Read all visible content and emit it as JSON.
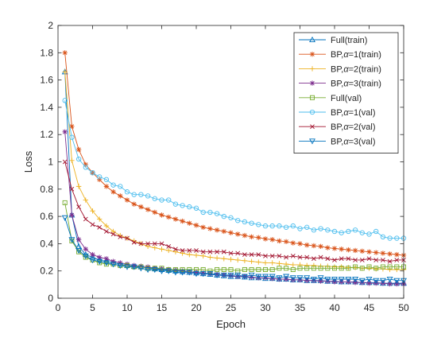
{
  "chart_data": {
    "type": "line",
    "xlabel": "Epoch",
    "ylabel": "Loss",
    "xlim": [
      0,
      50
    ],
    "ylim": [
      0,
      2
    ],
    "xticks": [
      0,
      5,
      10,
      15,
      20,
      25,
      30,
      35,
      40,
      45,
      50
    ],
    "yticks": [
      0,
      0.2,
      0.4,
      0.6,
      0.8,
      1,
      1.2,
      1.4,
      1.6,
      1.8,
      2
    ],
    "grid": false,
    "legend_position": "top-right",
    "x": [
      1,
      2,
      3,
      4,
      5,
      6,
      7,
      8,
      9,
      10,
      11,
      12,
      13,
      14,
      15,
      16,
      17,
      18,
      19,
      20,
      21,
      22,
      23,
      24,
      25,
      26,
      27,
      28,
      29,
      30,
      31,
      32,
      33,
      34,
      35,
      36,
      37,
      38,
      39,
      40,
      41,
      42,
      43,
      44,
      45,
      46,
      47,
      48,
      49,
      50
    ],
    "series": [
      {
        "name": "Full(train)",
        "label_prefix": "Full",
        "label_alpha": "",
        "label_suffix": "(train)",
        "color": "#0072BD",
        "marker": "triangle-up",
        "values": [
          1.66,
          0.61,
          0.38,
          0.32,
          0.3,
          0.28,
          0.27,
          0.26,
          0.25,
          0.24,
          0.235,
          0.23,
          0.22,
          0.215,
          0.21,
          0.205,
          0.2,
          0.195,
          0.19,
          0.185,
          0.18,
          0.175,
          0.17,
          0.165,
          0.16,
          0.16,
          0.155,
          0.15,
          0.15,
          0.145,
          0.145,
          0.14,
          0.14,
          0.135,
          0.135,
          0.13,
          0.13,
          0.13,
          0.125,
          0.125,
          0.12,
          0.12,
          0.12,
          0.115,
          0.115,
          0.115,
          0.11,
          0.11,
          0.11,
          0.11
        ]
      },
      {
        "name": "BP,α=1(train)",
        "label_prefix": "BP,",
        "label_alpha": "α",
        "label_suffix": "=1(train)",
        "color": "#D95319",
        "marker": "star",
        "values": [
          1.8,
          1.26,
          1.09,
          0.98,
          0.92,
          0.87,
          0.82,
          0.78,
          0.75,
          0.72,
          0.69,
          0.67,
          0.65,
          0.63,
          0.61,
          0.595,
          0.58,
          0.565,
          0.55,
          0.535,
          0.52,
          0.51,
          0.5,
          0.49,
          0.48,
          0.47,
          0.46,
          0.45,
          0.445,
          0.435,
          0.43,
          0.42,
          0.415,
          0.405,
          0.4,
          0.39,
          0.385,
          0.38,
          0.37,
          0.365,
          0.36,
          0.355,
          0.35,
          0.345,
          0.34,
          0.335,
          0.33,
          0.325,
          0.32,
          0.315
        ]
      },
      {
        "name": "BP,α=2(train)",
        "label_prefix": "BP,",
        "label_alpha": "α",
        "label_suffix": "=2(train)",
        "color": "#EDB120",
        "marker": "plus",
        "values": [
          1.66,
          1.01,
          0.82,
          0.72,
          0.64,
          0.58,
          0.53,
          0.49,
          0.46,
          0.44,
          0.42,
          0.4,
          0.38,
          0.37,
          0.36,
          0.35,
          0.34,
          0.33,
          0.32,
          0.315,
          0.31,
          0.3,
          0.295,
          0.29,
          0.285,
          0.28,
          0.275,
          0.27,
          0.265,
          0.26,
          0.26,
          0.255,
          0.25,
          0.245,
          0.245,
          0.24,
          0.24,
          0.235,
          0.235,
          0.23,
          0.23,
          0.225,
          0.225,
          0.22,
          0.22,
          0.215,
          0.215,
          0.21,
          0.21,
          0.21
        ]
      },
      {
        "name": "BP,α=3(train)",
        "label_prefix": "BP,",
        "label_alpha": "α",
        "label_suffix": "=3(train)",
        "color": "#7E2F8E",
        "marker": "star",
        "values": [
          1.22,
          0.61,
          0.43,
          0.36,
          0.32,
          0.3,
          0.29,
          0.27,
          0.26,
          0.25,
          0.24,
          0.235,
          0.23,
          0.22,
          0.215,
          0.21,
          0.205,
          0.2,
          0.195,
          0.19,
          0.185,
          0.18,
          0.175,
          0.17,
          0.165,
          0.16,
          0.16,
          0.155,
          0.15,
          0.15,
          0.145,
          0.14,
          0.14,
          0.135,
          0.135,
          0.13,
          0.13,
          0.125,
          0.125,
          0.12,
          0.12,
          0.12,
          0.115,
          0.115,
          0.11,
          0.11,
          0.11,
          0.105,
          0.105,
          0.105
        ]
      },
      {
        "name": "Full(val)",
        "label_prefix": "Full",
        "label_alpha": "",
        "label_suffix": "(val)",
        "color": "#77AC30",
        "marker": "square",
        "values": [
          0.7,
          0.42,
          0.34,
          0.3,
          0.28,
          0.26,
          0.25,
          0.25,
          0.24,
          0.24,
          0.23,
          0.23,
          0.22,
          0.22,
          0.22,
          0.21,
          0.21,
          0.21,
          0.21,
          0.21,
          0.21,
          0.2,
          0.21,
          0.21,
          0.21,
          0.2,
          0.21,
          0.21,
          0.21,
          0.21,
          0.21,
          0.22,
          0.22,
          0.21,
          0.22,
          0.22,
          0.22,
          0.22,
          0.22,
          0.22,
          0.22,
          0.22,
          0.23,
          0.22,
          0.23,
          0.22,
          0.23,
          0.23,
          0.23,
          0.23
        ]
      },
      {
        "name": "BP,α=1(val)",
        "label_prefix": "BP,",
        "label_alpha": "α",
        "label_suffix": "=1(val)",
        "color": "#4DBEEE",
        "marker": "circle",
        "values": [
          1.45,
          1.18,
          1.02,
          0.96,
          0.92,
          0.89,
          0.87,
          0.83,
          0.82,
          0.78,
          0.76,
          0.76,
          0.75,
          0.73,
          0.72,
          0.72,
          0.69,
          0.68,
          0.67,
          0.66,
          0.63,
          0.63,
          0.62,
          0.6,
          0.59,
          0.57,
          0.56,
          0.55,
          0.54,
          0.53,
          0.53,
          0.53,
          0.52,
          0.53,
          0.51,
          0.52,
          0.5,
          0.51,
          0.5,
          0.49,
          0.48,
          0.49,
          0.5,
          0.48,
          0.47,
          0.49,
          0.45,
          0.44,
          0.44,
          0.44
        ]
      },
      {
        "name": "BP,α=2(val)",
        "label_prefix": "BP,",
        "label_alpha": "α",
        "label_suffix": "=2(val)",
        "color": "#A2142F",
        "marker": "x",
        "values": [
          1.0,
          0.8,
          0.67,
          0.58,
          0.54,
          0.52,
          0.49,
          0.47,
          0.45,
          0.44,
          0.41,
          0.4,
          0.4,
          0.4,
          0.4,
          0.38,
          0.36,
          0.35,
          0.35,
          0.35,
          0.34,
          0.34,
          0.34,
          0.34,
          0.33,
          0.33,
          0.32,
          0.32,
          0.32,
          0.31,
          0.31,
          0.31,
          0.3,
          0.31,
          0.3,
          0.3,
          0.29,
          0.3,
          0.29,
          0.28,
          0.29,
          0.29,
          0.28,
          0.28,
          0.29,
          0.28,
          0.28,
          0.27,
          0.28,
          0.28
        ]
      },
      {
        "name": "BP,α=3(val)",
        "label_prefix": "BP,",
        "label_alpha": "α",
        "label_suffix": "=3(val)",
        "color": "#0072BD",
        "marker": "triangle-down",
        "values": [
          0.59,
          0.43,
          0.35,
          0.31,
          0.28,
          0.27,
          0.26,
          0.25,
          0.24,
          0.23,
          0.23,
          0.22,
          0.21,
          0.21,
          0.2,
          0.2,
          0.19,
          0.19,
          0.19,
          0.18,
          0.18,
          0.18,
          0.17,
          0.17,
          0.17,
          0.17,
          0.16,
          0.17,
          0.16,
          0.16,
          0.16,
          0.15,
          0.16,
          0.15,
          0.15,
          0.15,
          0.14,
          0.15,
          0.14,
          0.14,
          0.14,
          0.14,
          0.14,
          0.13,
          0.14,
          0.13,
          0.13,
          0.14,
          0.13,
          0.13
        ]
      }
    ]
  }
}
